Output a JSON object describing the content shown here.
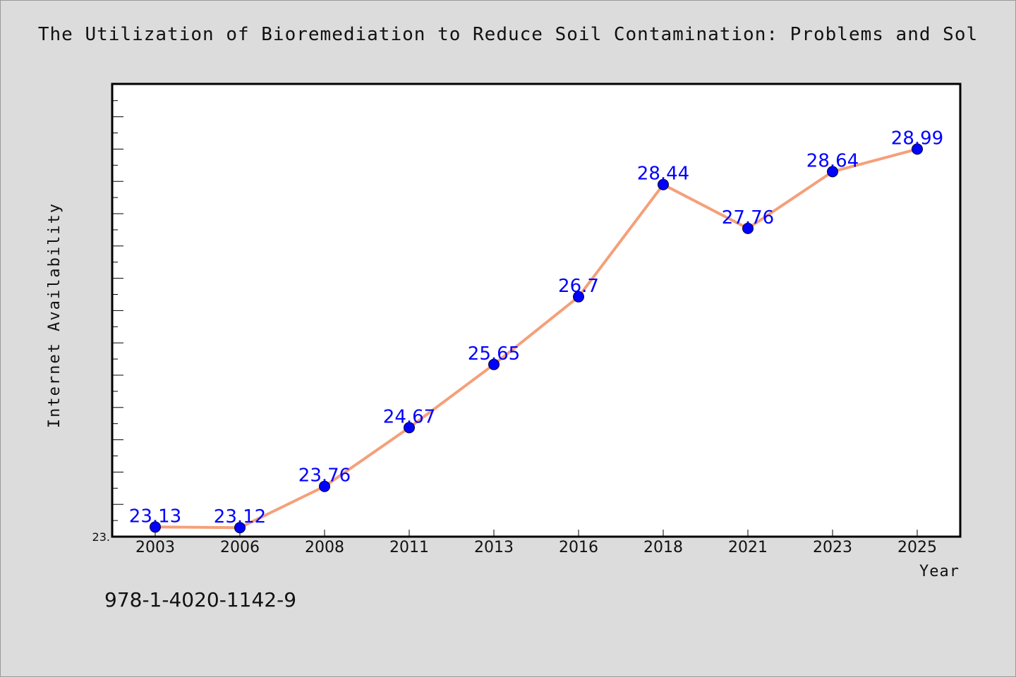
{
  "chart_data": {
    "type": "line",
    "title": "The Utilization of Bioremediation to Reduce Soil Contamination: Problems and Sol",
    "xlabel": "Year",
    "ylabel": "Internet Availability",
    "categories": [
      "2003",
      "2006",
      "2008",
      "2011",
      "2013",
      "2016",
      "2018",
      "2021",
      "2023",
      "2025"
    ],
    "values": [
      23.13,
      23.12,
      23.76,
      24.67,
      25.65,
      26.7,
      28.44,
      27.76,
      28.64,
      28.99
    ],
    "data_labels": [
      "23.13",
      "23.12",
      "23.76",
      "24.67",
      "25.65",
      "26.7",
      "28.44",
      "27.76",
      "28.64",
      "28.99"
    ],
    "y_tick_label": "23.",
    "ylim": [
      22.98,
      30.0
    ],
    "grid": false,
    "line_color": "#f4a07a",
    "marker_color": "#0000ff",
    "label_color": "#0000ff"
  },
  "footer": {
    "isbn": "978-1-4020-1142-9"
  }
}
